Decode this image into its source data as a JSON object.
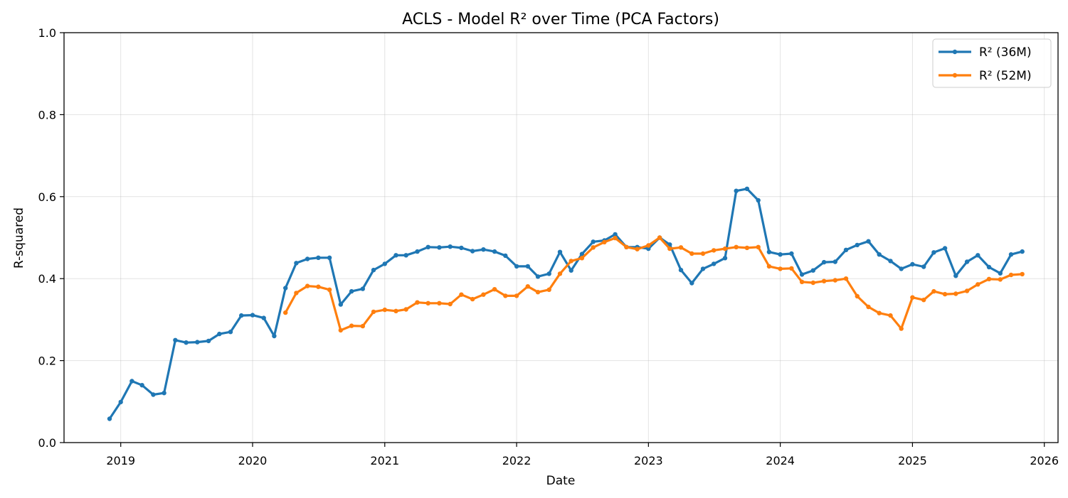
{
  "chart_data": {
    "type": "line",
    "title": "ACLS - Model R² over Time (PCA Factors)",
    "xlabel": "Date",
    "ylabel": "R-squared",
    "ylim": [
      0,
      1
    ],
    "xlim": [
      "2018-07-28",
      "2026-02-08"
    ],
    "x_ticks": [
      "2019",
      "2020",
      "2021",
      "2022",
      "2023",
      "2024",
      "2025",
      "2026"
    ],
    "y_ticks": [
      "0.0",
      "0.2",
      "0.4",
      "0.6",
      "0.8",
      "1.0"
    ],
    "grid": true,
    "legend_position": "top-right",
    "series": [
      {
        "name": "R² (36M)",
        "color": "#1f77b4",
        "start": "2018-12",
        "values": [
          0.058,
          0.099,
          0.15,
          0.14,
          0.117,
          0.121,
          0.25,
          0.244,
          0.245,
          0.248,
          0.265,
          0.27,
          0.31,
          0.311,
          0.304,
          0.26,
          0.377,
          0.438,
          0.448,
          0.451,
          0.451,
          0.337,
          0.369,
          0.375,
          0.421,
          0.436,
          0.457,
          0.457,
          0.466,
          0.477,
          0.476,
          0.478,
          0.475,
          0.467,
          0.471,
          0.466,
          0.456,
          0.43,
          0.43,
          0.405,
          0.412,
          0.465,
          0.42,
          0.46,
          0.49,
          0.493,
          0.508,
          0.477,
          0.477,
          0.473,
          0.5,
          0.483,
          0.421,
          0.389,
          0.424,
          0.436,
          0.45,
          0.614,
          0.619,
          0.591,
          0.465,
          0.459,
          0.461,
          0.41,
          0.42,
          0.44,
          0.441,
          0.47,
          0.482,
          0.491,
          0.459,
          0.443,
          0.424,
          0.435,
          0.429,
          0.464,
          0.474,
          0.407,
          0.441,
          0.457,
          0.428,
          0.413,
          0.459,
          0.466
        ]
      },
      {
        "name": "R² (52M)",
        "color": "#ff7f0e",
        "start": "2020-04",
        "values": [
          0.317,
          0.365,
          0.382,
          0.38,
          0.373,
          0.274,
          0.285,
          0.284,
          0.319,
          0.324,
          0.321,
          0.325,
          0.342,
          0.34,
          0.34,
          0.338,
          0.361,
          0.35,
          0.361,
          0.374,
          0.358,
          0.358,
          0.381,
          0.367,
          0.373,
          0.412,
          0.443,
          0.45,
          0.476,
          0.489,
          0.499,
          0.477,
          0.472,
          0.481,
          0.5,
          0.473,
          0.476,
          0.461,
          0.461,
          0.469,
          0.473,
          0.477,
          0.475,
          0.477,
          0.43,
          0.424,
          0.425,
          0.392,
          0.39,
          0.394,
          0.396,
          0.4,
          0.357,
          0.331,
          0.316,
          0.31,
          0.278,
          0.354,
          0.348,
          0.369,
          0.362,
          0.363,
          0.37,
          0.386,
          0.399,
          0.398,
          0.409,
          0.411
        ]
      }
    ]
  }
}
